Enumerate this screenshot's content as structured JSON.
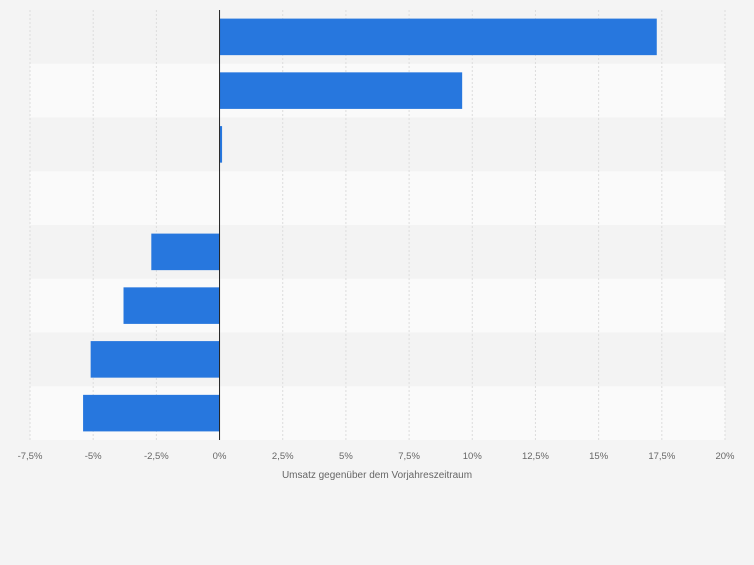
{
  "chart_data": {
    "type": "bar",
    "orientation": "horizontal",
    "title": "",
    "xlabel": "Umsatz gegenüber dem Vorjahreszeitraum",
    "ylabel": "",
    "xlim": [
      -7.5,
      20
    ],
    "ticks": [
      -7.5,
      -5,
      -2.5,
      0,
      2.5,
      5,
      7.5,
      10,
      12.5,
      15,
      17.5,
      20
    ],
    "tick_labels": [
      "-7,5%",
      "-5%",
      "-2,5%",
      "0%",
      "2,5%",
      "5%",
      "7,5%",
      "10%",
      "12,5%",
      "15%",
      "17,5%",
      "20%"
    ],
    "categories": [
      "",
      "",
      "",
      "",
      "",
      "",
      "",
      ""
    ],
    "values": [
      17.3,
      9.6,
      0.1,
      0.0,
      -2.7,
      -3.8,
      -5.1,
      -5.4
    ],
    "grid": true,
    "legend": "none",
    "bar_color": "#2777de",
    "band_colors": [
      "#f3f3f3",
      "#fafafa"
    ],
    "zero_line_color": "#222222"
  }
}
